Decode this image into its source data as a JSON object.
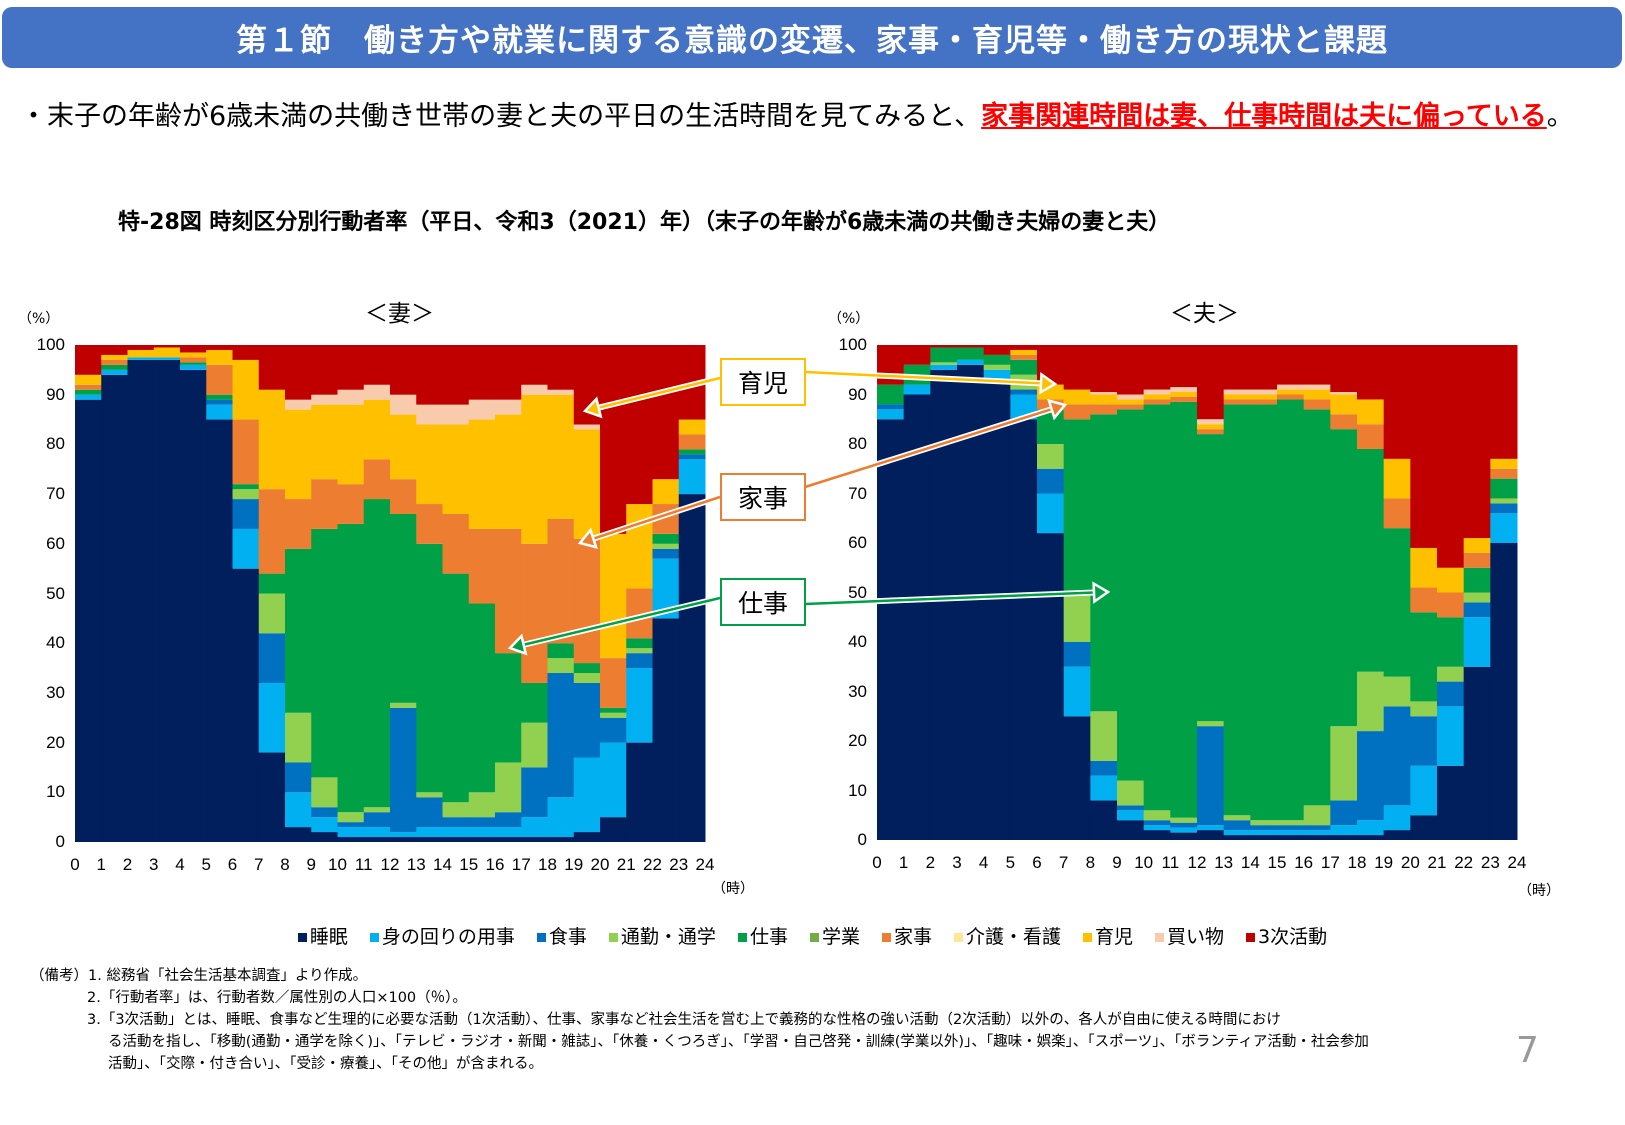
{
  "header": {
    "title": "第１節　働き方や就業に関する意識の変遷、家事・育児等・働き方の現状と課題"
  },
  "lead": {
    "bullet": "・",
    "text": "末子の年齢が6歳未満の共働き世帯の妻と夫の平日の生活時間を見てみると、",
    "highlight": "家事関連時間は妻、仕事時間は夫に偏っている",
    "end": "。"
  },
  "figure_title": "特-28図 時刻区分別行動者率（平日、令和3（2021）年）（末子の年齢が6歳未満の共働き夫婦の妻と夫）",
  "callouts": {
    "childcare": "育児",
    "housework": "家事",
    "work": "仕事"
  },
  "legend": [
    {
      "label": "睡眠",
      "color": "#001F5C"
    },
    {
      "label": "身の回りの用事",
      "color": "#00B0F0"
    },
    {
      "label": "食事",
      "color": "#0070C0"
    },
    {
      "label": "通勤・通学",
      "color": "#92D050"
    },
    {
      "label": "仕事",
      "color": "#00A046"
    },
    {
      "label": "学業",
      "color": "#70AD47"
    },
    {
      "label": "家事",
      "color": "#ED7D31"
    },
    {
      "label": "介護・看護",
      "color": "#FFE699"
    },
    {
      "label": "育児",
      "color": "#FFC000"
    },
    {
      "label": "買い物",
      "color": "#F8CBAD"
    },
    {
      "label": "3次活動",
      "color": "#C00000"
    }
  ],
  "notes": [
    "（備考）1. 総務省「社会生活基本調査」より作成。",
    "2.「行動者率」は、行動者数／属性別の人口×100（％）。",
    "3.「3次活動」とは、睡眠、食事など生理的に必要な活動（1次活動）、仕事、家事など社会生活を営む上で義務的な性格の強い活動（2次活動）以外の、各人が自由に使える時間におけ",
    "る活動を指し、「移動(通勤・通学を除く)」、「テレビ・ラジオ・新聞・雑誌」、「休養・くつろぎ」、「学習・自己啓発・訓練(学業以外)」、「趣味・娯楽」、「スポーツ」、「ボランティア活動・社会参加",
    "活動」、「交際・付き合い」、「受診・療養」、「その他」が含まれる。"
  ],
  "page_number": "7",
  "chart_data": [
    {
      "type": "area",
      "stacked": true,
      "title": "＜妻＞",
      "ylabel": "（%）",
      "xlabel": "（時）",
      "x": [
        0,
        1,
        2,
        3,
        4,
        5,
        6,
        7,
        8,
        9,
        10,
        11,
        12,
        13,
        14,
        15,
        16,
        17,
        18,
        19,
        20,
        21,
        22,
        23
      ],
      "xticks": [
        "0",
        "1",
        "2",
        "3",
        "4",
        "5",
        "6",
        "7",
        "8",
        "9",
        "10",
        "11",
        "12",
        "13",
        "14",
        "15",
        "16",
        "17",
        "18",
        "19",
        "20",
        "21",
        "22",
        "23",
        "24"
      ],
      "yticks": [
        "0",
        "10",
        "20",
        "30",
        "40",
        "50",
        "60",
        "70",
        "80",
        "90",
        "100"
      ],
      "xlim": [
        0,
        24
      ],
      "ylim": [
        0,
        100
      ],
      "grid": false,
      "legend": "bottom",
      "series": [
        {
          "name": "睡眠",
          "values": [
            89,
            94,
            97,
            97,
            95,
            85,
            55,
            18,
            3,
            2,
            1,
            1,
            1,
            1,
            1,
            1,
            1,
            1,
            1,
            2,
            5,
            20,
            45,
            70
          ]
        },
        {
          "name": "身の回りの用事",
          "values": [
            1,
            1,
            0.5,
            0.5,
            1,
            3,
            8,
            14,
            7,
            3,
            2,
            2,
            1,
            2,
            2,
            2,
            2,
            4,
            8,
            15,
            15,
            15,
            12,
            7
          ]
        },
        {
          "name": "食事",
          "values": [
            0,
            0,
            0,
            0,
            0,
            1,
            6,
            10,
            6,
            2,
            1,
            3,
            25,
            6,
            2,
            2,
            3,
            10,
            25,
            15,
            5,
            3,
            2,
            1
          ]
        },
        {
          "name": "通勤・通学",
          "values": [
            0,
            0,
            0,
            0,
            0,
            0,
            2,
            8,
            10,
            6,
            2,
            1,
            1,
            1,
            3,
            5,
            10,
            9,
            3,
            2,
            1,
            1,
            1,
            0
          ]
        },
        {
          "name": "仕事",
          "values": [
            1,
            1,
            0,
            0,
            0.5,
            1,
            1,
            4,
            33,
            50,
            58,
            62,
            38,
            50,
            46,
            38,
            22,
            8,
            3,
            2,
            1,
            2,
            2,
            1
          ]
        },
        {
          "name": "学業",
          "values": [
            0,
            0,
            0,
            0,
            0,
            0,
            0,
            0,
            0,
            0,
            0,
            0,
            0,
            0,
            0,
            0,
            0,
            0,
            0,
            0,
            0,
            0,
            0,
            0
          ]
        },
        {
          "name": "家事",
          "values": [
            1,
            1,
            0,
            0,
            1,
            6,
            13,
            17,
            10,
            10,
            8,
            8,
            7,
            8,
            12,
            15,
            25,
            28,
            25,
            25,
            10,
            10,
            6,
            3
          ]
        },
        {
          "name": "介護・看護",
          "values": [
            0,
            0,
            0,
            0,
            0,
            0,
            0,
            0,
            0,
            0,
            0,
            0,
            0,
            0,
            0,
            0,
            0,
            0,
            0,
            0,
            0,
            0,
            0,
            0
          ]
        },
        {
          "name": "育児",
          "values": [
            2,
            1,
            1.5,
            2,
            1,
            3,
            12,
            20,
            18,
            15,
            16,
            12,
            13,
            16,
            18,
            22,
            23,
            30,
            25,
            22,
            25,
            17,
            5,
            3
          ]
        },
        {
          "name": "買い物",
          "values": [
            0,
            0,
            0,
            0,
            0,
            0,
            0,
            0,
            2,
            2,
            3,
            3,
            4,
            4,
            4,
            4,
            3,
            2,
            1,
            1,
            0,
            0,
            0,
            0
          ]
        },
        {
          "name": "3次活動",
          "values": [
            6,
            2,
            1,
            0.5,
            1.5,
            1,
            3,
            9,
            11,
            10,
            9,
            8,
            10,
            12,
            12,
            11,
            11,
            8,
            9,
            16,
            38,
            32,
            27,
            15
          ]
        }
      ]
    },
    {
      "type": "area",
      "stacked": true,
      "title": "＜夫＞",
      "ylabel": "（%）",
      "xlabel": "（時）",
      "x": [
        0,
        1,
        2,
        3,
        4,
        5,
        6,
        7,
        8,
        9,
        10,
        11,
        12,
        13,
        14,
        15,
        16,
        17,
        18,
        19,
        20,
        21,
        22,
        23
      ],
      "xticks": [
        "0",
        "1",
        "2",
        "3",
        "4",
        "5",
        "6",
        "7",
        "8",
        "9",
        "10",
        "11",
        "12",
        "13",
        "14",
        "15",
        "16",
        "17",
        "18",
        "19",
        "20",
        "21",
        "22",
        "23",
        "24"
      ],
      "yticks": [
        "0",
        "10",
        "20",
        "30",
        "40",
        "50",
        "60",
        "70",
        "80",
        "90",
        "100"
      ],
      "xlim": [
        0,
        24
      ],
      "ylim": [
        0,
        100
      ],
      "grid": false,
      "legend": "bottom",
      "series": [
        {
          "name": "睡眠",
          "values": [
            85,
            90,
            95,
            96,
            93,
            85,
            62,
            25,
            8,
            4,
            2,
            1.5,
            2,
            1,
            1,
            1,
            1,
            1,
            1,
            2,
            5,
            15,
            35,
            60
          ]
        },
        {
          "name": "身の回りの用事",
          "values": [
            2,
            2,
            1,
            1,
            2,
            5,
            8,
            10,
            5,
            2,
            1,
            1,
            1,
            1,
            1,
            1,
            1,
            2,
            3,
            5,
            10,
            12,
            10,
            6
          ]
        },
        {
          "name": "食事",
          "values": [
            1,
            0,
            0,
            0,
            0,
            1,
            5,
            5,
            3,
            1,
            1,
            1,
            20,
            2,
            1,
            1,
            1,
            5,
            18,
            20,
            10,
            5,
            3,
            2
          ]
        },
        {
          "name": "通勤・通学",
          "values": [
            0,
            0,
            0.5,
            0,
            1,
            3,
            5,
            10,
            10,
            5,
            2,
            1,
            1,
            1,
            1,
            1,
            4,
            15,
            12,
            6,
            3,
            3,
            2,
            1
          ]
        },
        {
          "name": "仕事",
          "values": [
            4,
            4,
            3,
            2.5,
            2,
            3,
            7,
            35,
            60,
            75,
            82,
            84,
            58,
            83,
            84,
            85,
            80,
            60,
            45,
            30,
            18,
            10,
            5,
            4
          ]
        },
        {
          "name": "学業",
          "values": [
            0,
            0,
            0,
            0,
            0,
            0,
            0,
            0,
            0,
            0,
            0,
            0,
            0,
            0,
            0,
            0,
            0,
            0,
            0,
            0,
            0,
            0,
            0,
            0
          ]
        },
        {
          "name": "家事",
          "values": [
            0,
            0,
            0,
            0,
            0,
            1,
            2,
            3,
            2,
            1,
            1,
            1,
            1,
            1,
            1,
            1,
            2,
            3,
            5,
            6,
            5,
            5,
            3,
            2
          ]
        },
        {
          "name": "介護・看護",
          "values": [
            0,
            0,
            0,
            0,
            0,
            0,
            0,
            0,
            0,
            0,
            0,
            0,
            0,
            0,
            0,
            0,
            0,
            0,
            0,
            0,
            0,
            0,
            0,
            0
          ]
        },
        {
          "name": "育児",
          "values": [
            0,
            0,
            0,
            0,
            0,
            1,
            3,
            3,
            2,
            1,
            1,
            1,
            1,
            1,
            1,
            1,
            2,
            4,
            5,
            8,
            8,
            5,
            3,
            2
          ]
        },
        {
          "name": "買い物",
          "values": [
            0,
            0,
            0,
            0,
            0,
            0,
            0,
            0,
            0.5,
            1,
            1,
            1,
            1,
            1,
            1,
            1,
            1,
            0.5,
            0,
            0,
            0,
            0,
            0,
            0
          ]
        },
        {
          "name": "3次活動",
          "values": [
            8,
            4,
            0.5,
            0.5,
            2,
            1,
            8,
            9,
            9.5,
            10,
            9,
            8.5,
            15,
            9,
            9,
            8,
            8,
            9.5,
            11,
            23,
            41,
            45,
            39,
            23
          ]
        }
      ]
    }
  ]
}
